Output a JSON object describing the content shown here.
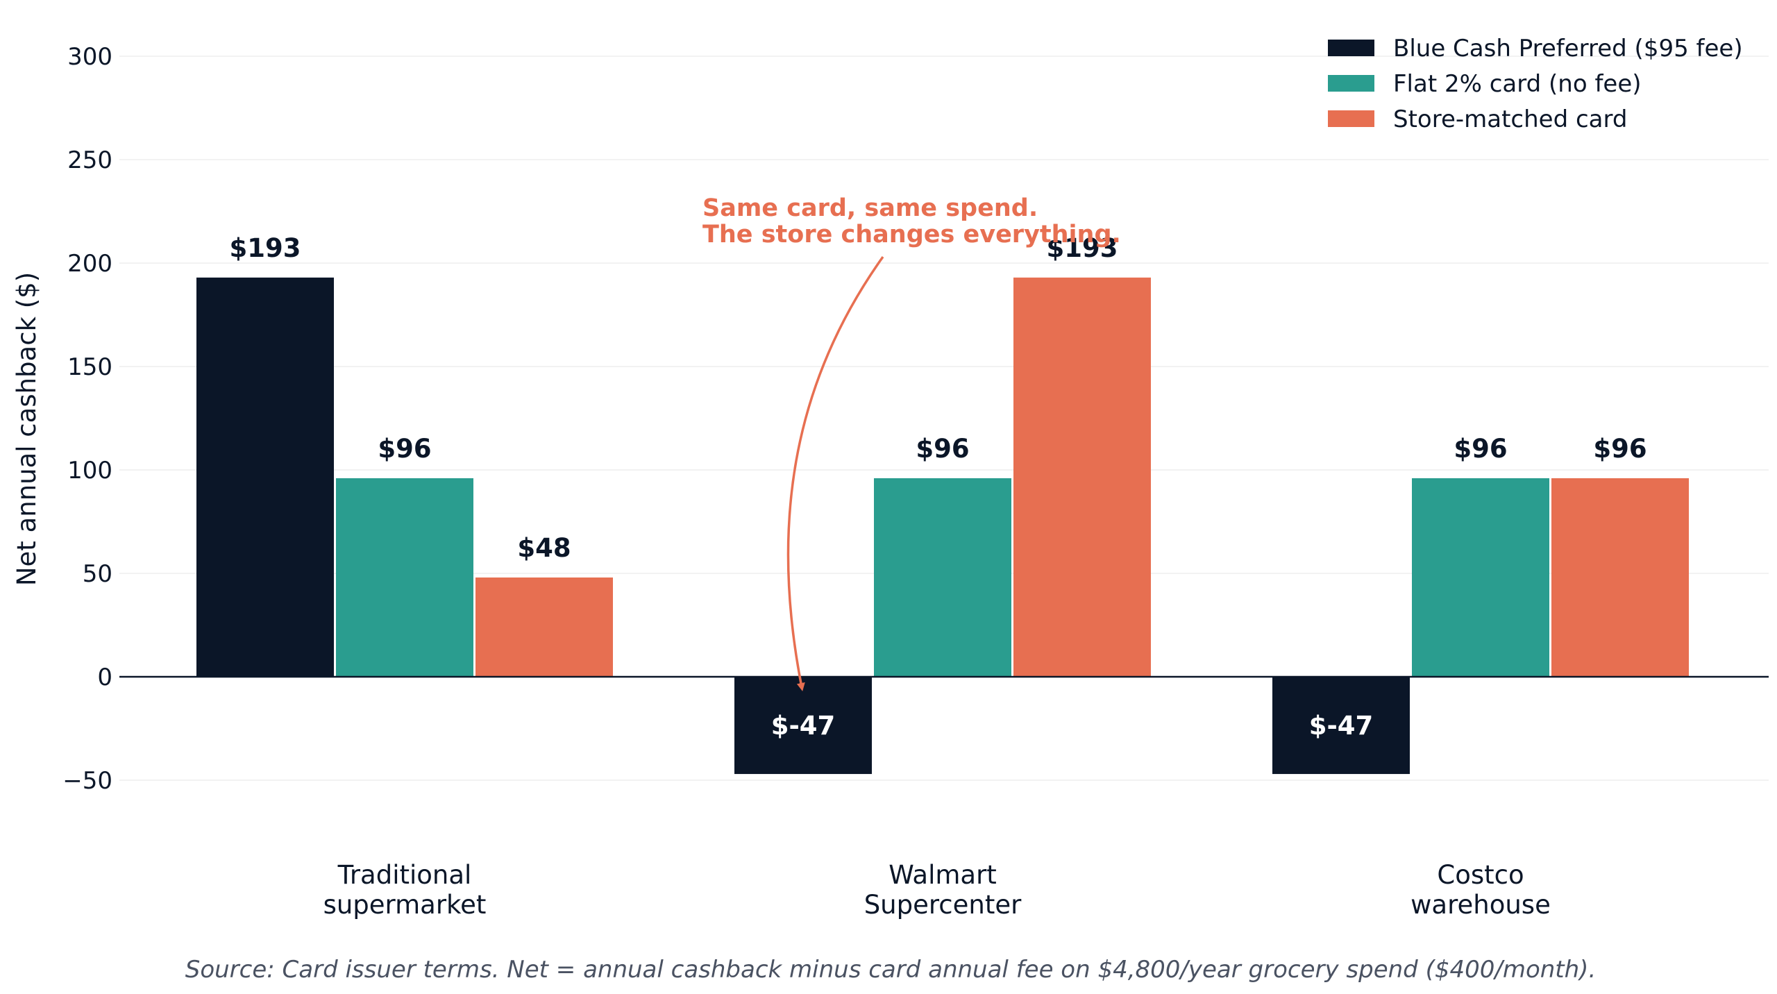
{
  "chart_data": {
    "type": "bar",
    "categories": [
      "Traditional supermarket",
      "Walmart Supercenter",
      "Costco warehouse"
    ],
    "category_lines": [
      [
        "Traditional",
        "supermarket"
      ],
      [
        "Walmart",
        "Supercenter"
      ],
      [
        "Costco",
        "warehouse"
      ]
    ],
    "series": [
      {
        "name": "Blue Cash Preferred ($95 fee)",
        "color": "#0b1628",
        "values": [
          193,
          -47,
          -47
        ],
        "labels": [
          "$193",
          "$-47",
          "$-47"
        ]
      },
      {
        "name": "Flat 2% card (no fee)",
        "color": "#2a9d8f",
        "values": [
          96,
          96,
          96
        ],
        "labels": [
          "$96",
          "$96",
          "$96"
        ]
      },
      {
        "name": "Store-matched card",
        "color": "#e76f51",
        "values": [
          48,
          193,
          96
        ],
        "labels": [
          "$48",
          "$193",
          "$96"
        ]
      }
    ],
    "ylabel": "Net annual cashback ($)",
    "xlabel": "",
    "ylim": [
      -80,
      310
    ],
    "yticks": [
      -50,
      0,
      50,
      100,
      150,
      200,
      250,
      300
    ],
    "ytick_labels": [
      "−50",
      "0",
      "50",
      "100",
      "150",
      "200",
      "250",
      "300"
    ],
    "grid": true,
    "legend_position": "top-right",
    "annotation": {
      "lines": [
        "Same card, same spend.",
        "The store changes everything."
      ],
      "color": "#e76f51",
      "target": {
        "category": "Walmart Supercenter",
        "series": "Blue Cash Preferred ($95 fee)"
      }
    },
    "source_note": "Source: Card issuer terms. Net = annual cashback minus card annual fee on $4,800/year grocery spend ($400/month)."
  }
}
